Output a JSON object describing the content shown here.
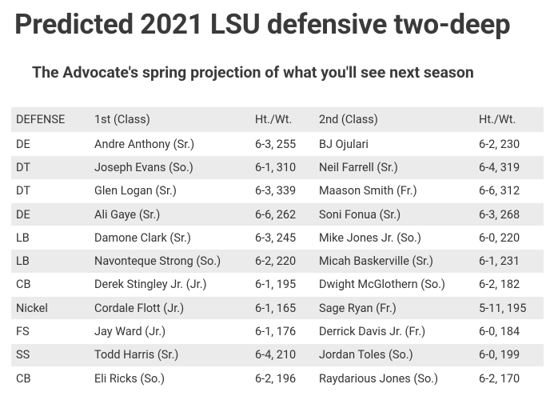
{
  "title": "Predicted 2021 LSU defensive two-deep",
  "subtitle": "The Advocate's spring projection of what you'll see next season",
  "table": {
    "header": [
      "DEFENSE",
      "1st (Class)",
      "Ht./Wt.",
      "2nd (Class)",
      "Ht./Wt."
    ],
    "rows": [
      [
        "DE",
        "Andre Anthony (Sr.)",
        "6-3, 255",
        "BJ Ojulari",
        "6-2, 230"
      ],
      [
        "DT",
        "Joseph Evans (So.)",
        "6-1, 310",
        "Neil Farrell (Sr.)",
        "6-4, 319"
      ],
      [
        "DT",
        "Glen Logan (Sr.)",
        "6-3, 339",
        "Maason Smith (Fr.)",
        "6-6, 312"
      ],
      [
        "DE",
        "Ali Gaye (Sr.)",
        "6-6, 262",
        "Soni Fonua (Sr.)",
        "6-3, 268"
      ],
      [
        "LB",
        "Damone Clark (Sr.)",
        "6-3, 245",
        "Mike Jones Jr. (So.)",
        "6-0, 220"
      ],
      [
        "LB",
        "Navonteque Strong (So.)",
        "6-2, 220",
        "Micah Baskerville (Sr.)",
        "6-1, 231"
      ],
      [
        "CB",
        "Derek Stingley Jr. (Jr.)",
        "6-1, 195",
        "Dwight McGlothern (So.)",
        "6-2, 182"
      ],
      [
        "Nickel",
        "Cordale Flott (Jr.)",
        "6-1, 165",
        "Sage Ryan (Fr.)",
        "5-11, 195"
      ],
      [
        "FS",
        "Jay Ward (Jr.)",
        "6-1, 176",
        "Derrick Davis Jr. (Fr.)",
        "6-0, 184"
      ],
      [
        "SS",
        "Todd Harris (Sr.)",
        "6-4, 210",
        "Jordan Toles (So.)",
        "6-0, 199"
      ],
      [
        "CB",
        "Eli Ricks (So.)",
        "6-2, 196",
        "Raydarious Jones (So.)",
        "6-2, 170"
      ]
    ]
  }
}
